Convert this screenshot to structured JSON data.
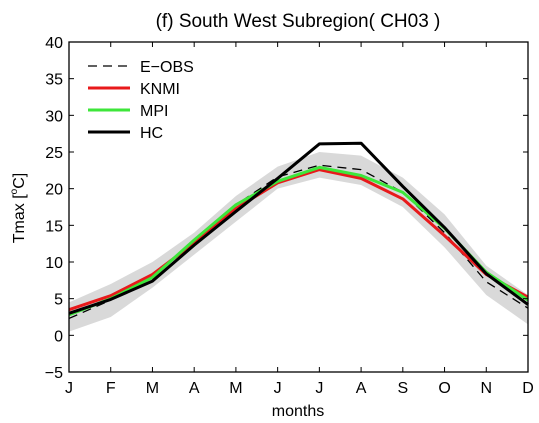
{
  "chart_data": {
    "type": "line",
    "title": "(f) South West Subregion( CH03 )",
    "xlabel": "months",
    "ylabel_main": "Tmax [",
    "ylabel_sup": "o",
    "ylabel_tail": "C]",
    "categories": [
      "J",
      "F",
      "M",
      "A",
      "M",
      "J",
      "J",
      "A",
      "S",
      "O",
      "N",
      "D"
    ],
    "yticks": [
      "−5",
      "0",
      "5",
      "10",
      "15",
      "20",
      "25",
      "30",
      "35",
      "40"
    ],
    "ylim": [
      -5,
      40
    ],
    "grid": false,
    "legend_position": "top-left",
    "band": {
      "upper": [
        4.5,
        7.0,
        10.0,
        14.0,
        19.0,
        23.0,
        25.0,
        24.5,
        21.5,
        16.5,
        9.5,
        5.5
      ],
      "lower": [
        0.5,
        2.5,
        6.5,
        11.0,
        15.5,
        20.0,
        21.5,
        20.5,
        17.5,
        12.0,
        5.5,
        1.5
      ],
      "color": "#d9d9d9"
    },
    "series": [
      {
        "name": "E−OBS",
        "values": [
          2.3,
          4.8,
          8.3,
          12.7,
          17.8,
          21.6,
          23.2,
          22.6,
          19.5,
          14.0,
          7.3,
          3.7
        ],
        "color": "#000000",
        "dashed": true
      },
      {
        "name": "KNMI",
        "values": [
          3.5,
          5.4,
          8.3,
          12.6,
          17.3,
          20.8,
          22.6,
          21.4,
          18.6,
          13.6,
          8.3,
          5.2
        ],
        "color": "#e8191b",
        "dashed": false
      },
      {
        "name": "MPI",
        "values": [
          2.8,
          5.0,
          7.9,
          13.0,
          17.8,
          21.0,
          22.9,
          21.8,
          19.5,
          14.6,
          8.6,
          4.8
        ],
        "color": "#3de63a",
        "dashed": false
      },
      {
        "name": "HC",
        "values": [
          3.0,
          4.9,
          7.4,
          12.3,
          16.9,
          21.4,
          26.1,
          26.2,
          20.3,
          14.7,
          8.4,
          4.2
        ],
        "color": "#000000",
        "dashed": false
      }
    ]
  }
}
